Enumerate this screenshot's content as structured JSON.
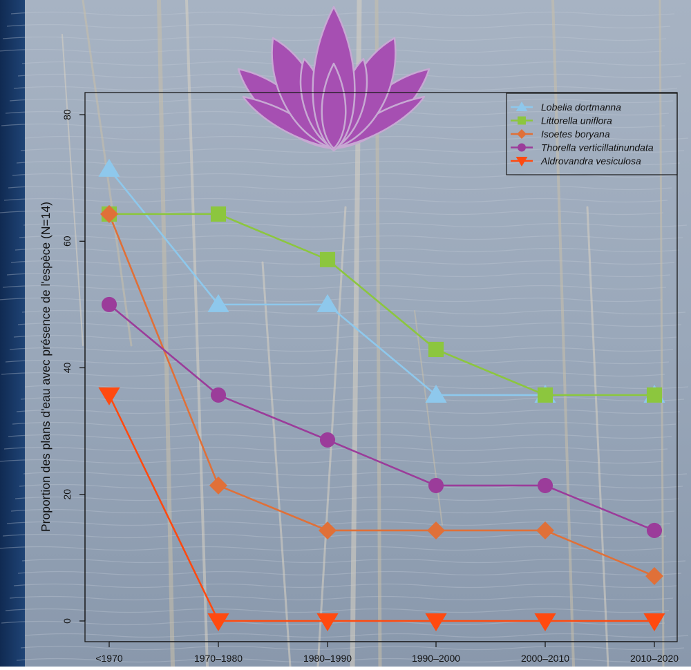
{
  "chart_data": {
    "type": "line",
    "categories": [
      "<1970",
      "1970–1980",
      "1980–1990",
      "1990–2000",
      "2000–2010",
      "2010–2020"
    ],
    "ylabel": "Proportion des plans d'eau avec présence de l'espèce (N=14)",
    "xlabel": "",
    "ylim": [
      0,
      80
    ],
    "yticks": [
      "0",
      "20",
      "40",
      "60",
      "80"
    ],
    "legend_position": "top-right",
    "grid": false,
    "series": [
      {
        "name": "Lobelia dortmanna",
        "color": "#8ec8ec",
        "marker": "triangle-up",
        "values": [
          71.4,
          50.0,
          50.0,
          35.7,
          35.7,
          35.7
        ]
      },
      {
        "name": "Littorella uniflora",
        "color": "#8cc63e",
        "marker": "square",
        "values": [
          64.3,
          64.3,
          57.1,
          42.9,
          35.7,
          35.7
        ]
      },
      {
        "name": "Isoetes boryana",
        "color": "#e07038",
        "marker": "diamond",
        "values": [
          64.3,
          21.4,
          14.3,
          14.3,
          14.3,
          7.1
        ]
      },
      {
        "name": "Thorella verticillatinundata",
        "color": "#9b3c9a",
        "marker": "circle",
        "values": [
          50.0,
          35.7,
          28.6,
          21.4,
          21.4,
          14.3
        ]
      },
      {
        "name": "Aldrovandra vesiculosa",
        "color": "#ff4a10",
        "marker": "triangle-down",
        "values": [
          35.7,
          0,
          0,
          0,
          0,
          0
        ]
      }
    ]
  },
  "logo": {
    "color": "#a64fb2",
    "icon": "lotus-icon"
  }
}
